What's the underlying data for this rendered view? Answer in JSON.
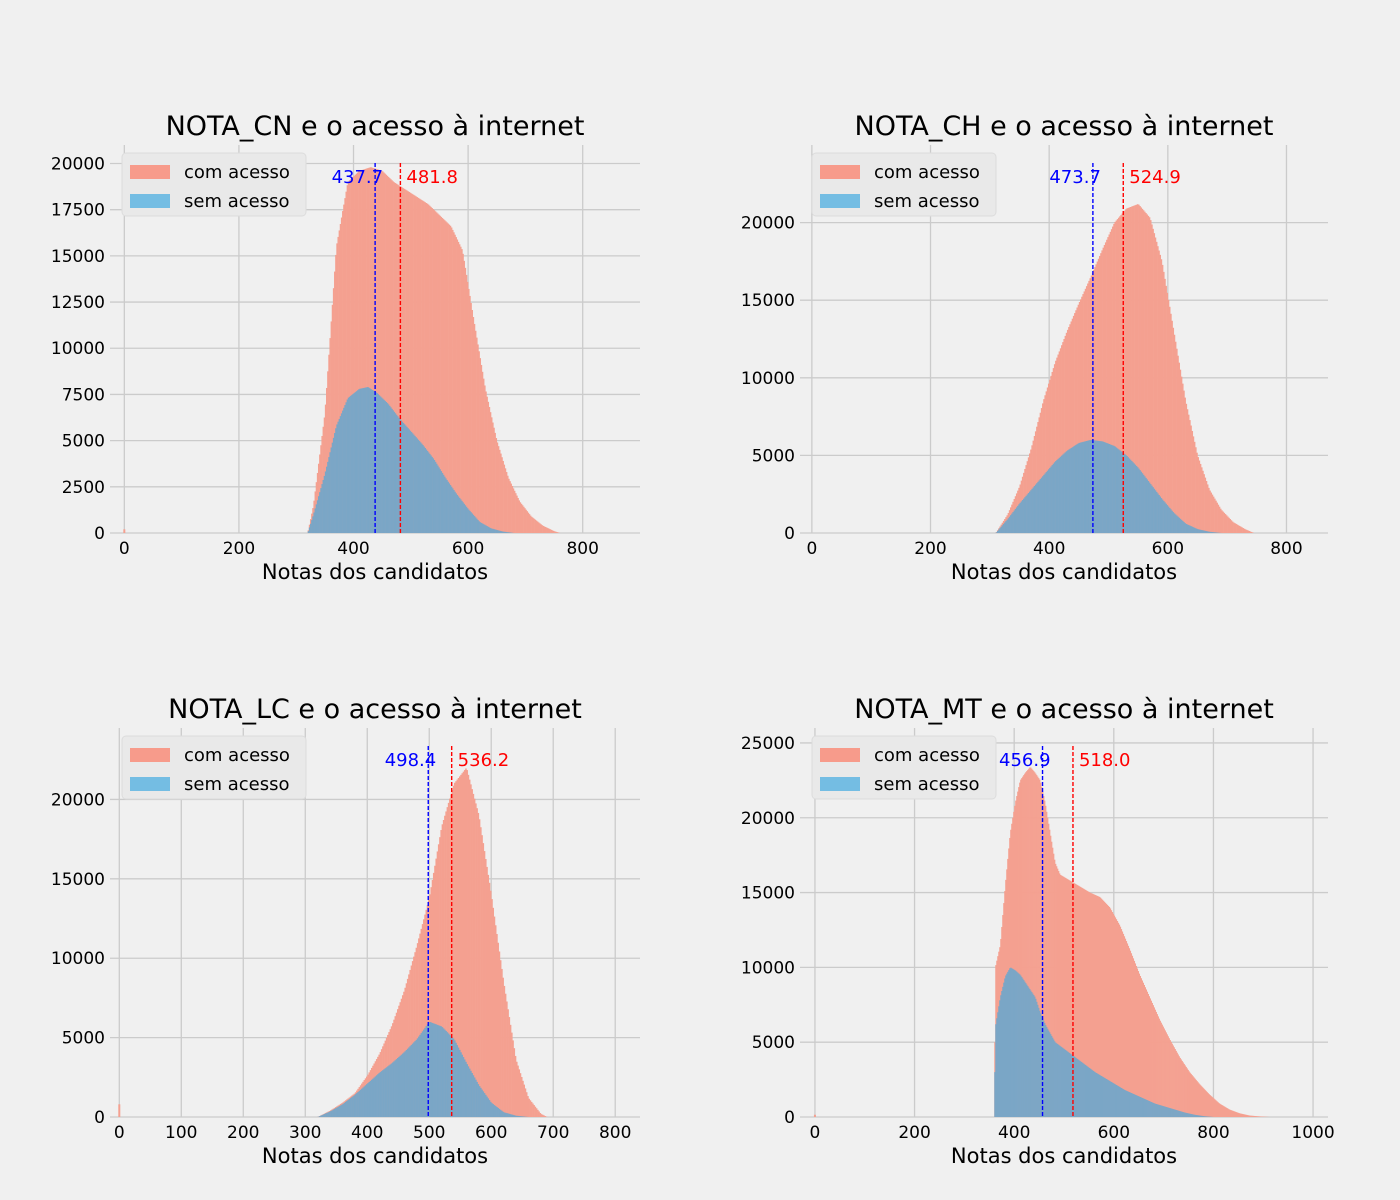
{
  "colors": {
    "background": "#f0f0f0",
    "grid": "#cbcbcb",
    "com_acesso": "#f4a090",
    "sem_acesso": "#7ba6c6",
    "legend_com": "#f79b8b",
    "legend_sem": "#74bde3",
    "mean_sem": "#0000ff",
    "mean_com": "#ff0000"
  },
  "chart_data": [
    {
      "type": "histogram",
      "title": "NOTA_CN e o acesso à internet",
      "xlabel": "Notas dos candidatos",
      "ylabel": "",
      "xlim": [
        -25,
        900
      ],
      "ylim": [
        0,
        21000
      ],
      "xticks": [
        0,
        200,
        400,
        600,
        800
      ],
      "yticks": [
        0,
        2500,
        5000,
        7500,
        10000,
        12500,
        15000,
        17500,
        20000
      ],
      "grid": true,
      "legend": "upper left",
      "series": [
        {
          "name": "com acesso",
          "x": [
            0,
            320,
            330,
            350,
            370,
            390,
            410,
            430,
            450,
            470,
            490,
            510,
            530,
            550,
            570,
            590,
            610,
            630,
            650,
            670,
            690,
            710,
            730,
            750,
            760
          ],
          "values": [
            200,
            0,
            1500,
            6500,
            15500,
            19000,
            19600,
            19800,
            19600,
            19000,
            18600,
            18200,
            17800,
            17200,
            16600,
            15300,
            11500,
            7800,
            5000,
            3000,
            1700,
            900,
            400,
            100,
            0
          ]
        },
        {
          "name": "sem acesso",
          "x": [
            320,
            330,
            350,
            370,
            390,
            410,
            425,
            440,
            460,
            480,
            500,
            520,
            540,
            560,
            580,
            600,
            620,
            640,
            660,
            680
          ],
          "values": [
            0,
            1000,
            3200,
            5800,
            7300,
            7800,
            7900,
            7600,
            7000,
            6200,
            5500,
            4800,
            4000,
            3000,
            2100,
            1300,
            600,
            250,
            80,
            0
          ]
        }
      ],
      "means": {
        "sem acesso": 437.7,
        "com acesso": 481.8
      },
      "mean_labels": [
        "437.7",
        "481.8"
      ]
    },
    {
      "type": "histogram",
      "title": "NOTA_CH e o acesso à internet",
      "xlabel": "Notas dos candidatos",
      "ylabel": "",
      "xlim": [
        -20,
        870
      ],
      "ylim": [
        0,
        25000
      ],
      "xticks": [
        0,
        200,
        400,
        600,
        800
      ],
      "yticks": [
        0,
        5000,
        10000,
        15000,
        20000
      ],
      "grid": true,
      "legend": "upper left",
      "series": [
        {
          "name": "com acesso",
          "x": [
            310,
            330,
            350,
            370,
            390,
            410,
            430,
            450,
            470,
            490,
            510,
            530,
            550,
            570,
            590,
            610,
            630,
            650,
            670,
            690,
            710,
            730,
            745
          ],
          "values": [
            0,
            1200,
            3000,
            5500,
            8500,
            11000,
            13000,
            14800,
            16500,
            18300,
            20000,
            20900,
            21200,
            20300,
            17500,
            13000,
            8500,
            5000,
            2800,
            1500,
            700,
            250,
            0
          ]
        },
        {
          "name": "sem acesso",
          "x": [
            310,
            330,
            350,
            370,
            390,
            410,
            430,
            450,
            470,
            490,
            510,
            530,
            550,
            570,
            590,
            610,
            630,
            650,
            670,
            690
          ],
          "values": [
            0,
            900,
            1900,
            2800,
            3700,
            4600,
            5300,
            5800,
            6000,
            5900,
            5600,
            5000,
            4200,
            3200,
            2200,
            1300,
            600,
            250,
            80,
            0
          ]
        }
      ],
      "means": {
        "sem acesso": 473.7,
        "com acesso": 524.9
      },
      "mean_labels": [
        "473.7",
        "524.9"
      ]
    },
    {
      "type": "histogram",
      "title": "NOTA_LC e o acesso à internet",
      "xlabel": "Notas dos candidatos",
      "ylabel": "",
      "xlim": [
        -15,
        840
      ],
      "ylim": [
        0,
        24500
      ],
      "xticks": [
        0,
        100,
        200,
        300,
        400,
        500,
        600,
        700,
        800
      ],
      "yticks": [
        0,
        5000,
        10000,
        15000,
        20000
      ],
      "grid": true,
      "legend": "upper left",
      "series": [
        {
          "name": "com acesso",
          "x": [
            0,
            320,
            340,
            360,
            380,
            400,
            420,
            440,
            460,
            480,
            500,
            520,
            540,
            560,
            580,
            600,
            620,
            640,
            660,
            680,
            690
          ],
          "values": [
            800,
            0,
            400,
            900,
            1500,
            2600,
            4000,
            5800,
            8000,
            10800,
            13800,
            18300,
            21000,
            22000,
            19000,
            14000,
            8500,
            3600,
            1200,
            200,
            0
          ]
        },
        {
          "name": "sem acesso",
          "x": [
            320,
            340,
            360,
            380,
            400,
            420,
            440,
            460,
            480,
            500,
            520,
            540,
            560,
            580,
            600,
            620,
            640,
            660
          ],
          "values": [
            0,
            350,
            800,
            1400,
            2100,
            2800,
            3400,
            4100,
            4900,
            6000,
            5700,
            4900,
            3400,
            2000,
            900,
            300,
            80,
            0
          ]
        }
      ],
      "means": {
        "sem acesso": 498.4,
        "com acesso": 536.2
      },
      "mean_labels": [
        "498.4",
        "536.2"
      ]
    },
    {
      "type": "histogram",
      "title": "NOTA_MT e o acesso à internet",
      "xlabel": "Notas dos candidatos",
      "ylabel": "",
      "xlim": [
        -30,
        1030
      ],
      "ylim": [
        0,
        26000
      ],
      "xticks": [
        0,
        200,
        400,
        600,
        800,
        1000
      ],
      "yticks": [
        0,
        5000,
        10000,
        15000,
        20000,
        25000
      ],
      "grid": true,
      "legend": "upper left",
      "series": [
        {
          "name": "com acesso",
          "x": [
            0,
            360,
            362,
            372,
            382,
            392,
            402,
            412,
            422,
            432,
            442,
            452,
            462,
            472,
            482,
            492,
            512,
            532,
            552,
            572,
            592,
            612,
            632,
            652,
            672,
            692,
            712,
            732,
            752,
            772,
            792,
            812,
            832,
            852,
            872,
            892,
            912
          ],
          "values": [
            150,
            0,
            10000,
            11500,
            15500,
            19000,
            21000,
            22500,
            23000,
            23400,
            23000,
            22500,
            21000,
            19000,
            17000,
            16200,
            15800,
            15400,
            15000,
            14700,
            14000,
            12800,
            11200,
            9500,
            8000,
            6500,
            5200,
            4000,
            3000,
            2200,
            1500,
            900,
            500,
            250,
            100,
            40,
            0
          ]
        },
        {
          "name": "sem acesso",
          "x": [
            360,
            362,
            372,
            382,
            392,
            402,
            412,
            422,
            432,
            442,
            452,
            462,
            472,
            482,
            502,
            522,
            542,
            562,
            582,
            602,
            622,
            642,
            662,
            682,
            702,
            722,
            742,
            762,
            782,
            800
          ],
          "values": [
            0,
            6000,
            8000,
            9400,
            10000,
            9800,
            9500,
            9000,
            8500,
            8000,
            7000,
            6200,
            5600,
            5000,
            4500,
            4000,
            3500,
            3000,
            2600,
            2200,
            1800,
            1500,
            1200,
            900,
            700,
            500,
            300,
            150,
            50,
            0
          ]
        }
      ],
      "means": {
        "sem acesso": 456.9,
        "com acesso": 518.0
      },
      "mean_labels": [
        "456.9",
        "518.0"
      ]
    }
  ]
}
